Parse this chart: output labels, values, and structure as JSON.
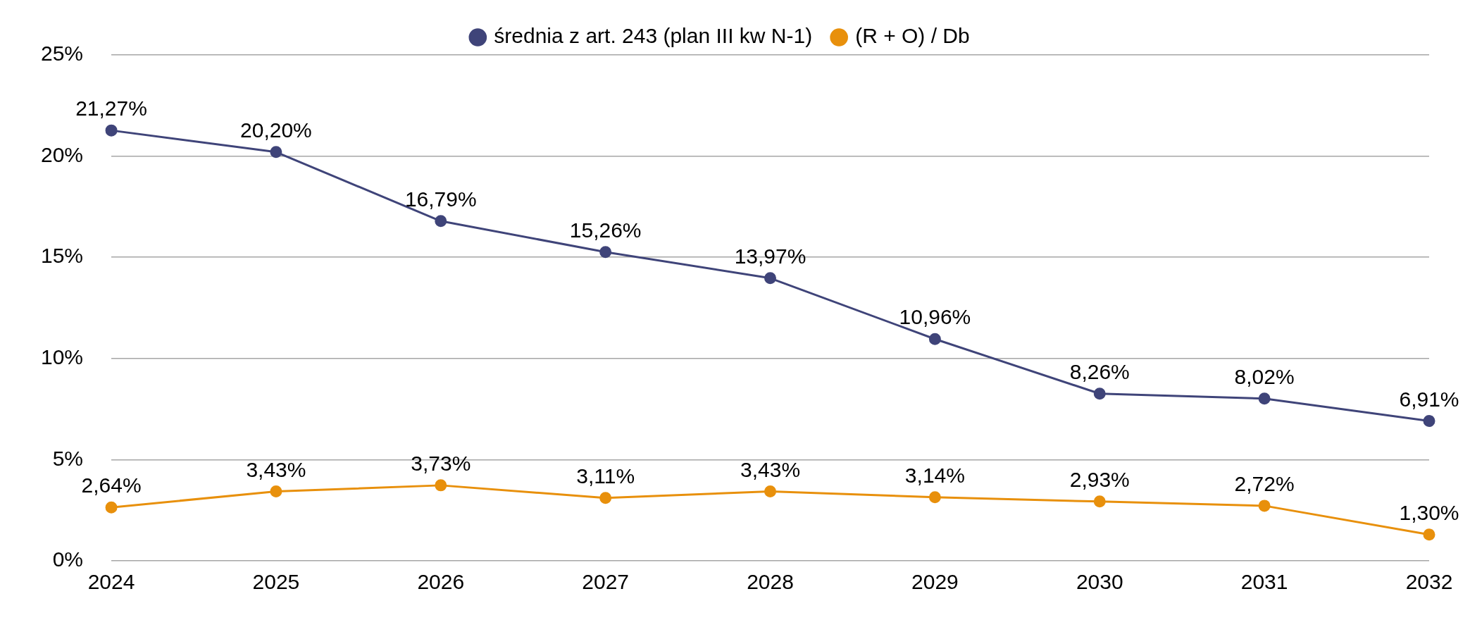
{
  "chart_data": {
    "type": "line",
    "categories": [
      "2024",
      "2025",
      "2026",
      "2027",
      "2028",
      "2029",
      "2030",
      "2031",
      "2032"
    ],
    "series": [
      {
        "name": "średnia z art. 243 (plan III kw N-1)",
        "color": "#3f4479",
        "values": [
          21.27,
          20.2,
          16.79,
          15.26,
          13.97,
          10.96,
          8.26,
          8.02,
          6.91
        ],
        "value_labels": [
          "21,27%",
          "20,20%",
          "16,79%",
          "15,26%",
          "13,97%",
          "10,96%",
          "8,26%",
          "8,02%",
          "6,91%"
        ]
      },
      {
        "name": "(R + O) / Db",
        "color": "#e8900c",
        "values": [
          2.64,
          3.43,
          3.73,
          3.11,
          3.43,
          3.14,
          2.93,
          2.72,
          1.3
        ],
        "value_labels": [
          "2,64%",
          "3,43%",
          "3,73%",
          "3,11%",
          "3,43%",
          "3,14%",
          "2,93%",
          "2,72%",
          "1,30%"
        ]
      }
    ],
    "ylim": [
      0,
      25
    ],
    "yticks": [
      {
        "value": 0,
        "label": "0%"
      },
      {
        "value": 5,
        "label": "5%"
      },
      {
        "value": 10,
        "label": "10%"
      },
      {
        "value": 15,
        "label": "15%"
      },
      {
        "value": 20,
        "label": "20%"
      },
      {
        "value": 25,
        "label": "25%"
      }
    ],
    "grid": "y",
    "legend": "top",
    "marker": "circle",
    "line_style": "solid"
  }
}
